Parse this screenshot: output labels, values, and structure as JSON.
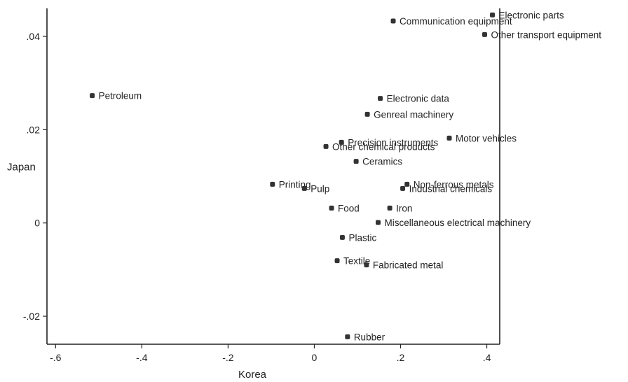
{
  "chart_data": {
    "type": "scatter",
    "xlabel": "Korea",
    "ylabel": "Japan",
    "xlim": [
      -0.62,
      0.43
    ],
    "ylim": [
      -0.026,
      0.046
    ],
    "xticks": [
      {
        "value": -0.6,
        "label": "-.6"
      },
      {
        "value": -0.4,
        "label": "-.4"
      },
      {
        "value": -0.2,
        "label": "-.2"
      },
      {
        "value": 0,
        "label": "0"
      },
      {
        "value": 0.2,
        "label": ".2"
      },
      {
        "value": 0.4,
        "label": ".4"
      }
    ],
    "yticks": [
      {
        "value": 0.04,
        "label": ".04"
      },
      {
        "value": 0.02,
        "label": ".02"
      },
      {
        "value": 0,
        "label": "0"
      },
      {
        "value": -0.02,
        "label": "-.02"
      }
    ],
    "points": [
      {
        "label": "Electronic parts",
        "x": 0.413,
        "y": 0.0446
      },
      {
        "label": "Communication equipment",
        "x": 0.183,
        "y": 0.0433
      },
      {
        "label": "Other transport equipment",
        "x": 0.395,
        "y": 0.0404
      },
      {
        "label": "Petroleum",
        "x": -0.515,
        "y": 0.0273
      },
      {
        "label": "Electronic data",
        "x": 0.153,
        "y": 0.0267
      },
      {
        "label": "Genreal machinery",
        "x": 0.123,
        "y": 0.0233
      },
      {
        "label": "Motor vehicles",
        "x": 0.313,
        "y": 0.0182
      },
      {
        "label": "Precision instruments",
        "x": 0.063,
        "y": 0.0173
      },
      {
        "label": "Other chemical products",
        "x": 0.027,
        "y": 0.0164
      },
      {
        "label": "Ceramics",
        "x": 0.097,
        "y": 0.0132
      },
      {
        "label": "Printing",
        "x": -0.097,
        "y": 0.0083
      },
      {
        "label": "Pulp",
        "x": -0.023,
        "y": 0.0074
      },
      {
        "label": "Non-ferrous metals",
        "x": 0.215,
        "y": 0.0083
      },
      {
        "label": "Industrial chemicals",
        "x": 0.205,
        "y": 0.0074
      },
      {
        "label": "Food",
        "x": 0.04,
        "y": 0.0032
      },
      {
        "label": "Iron",
        "x": 0.175,
        "y": 0.0032
      },
      {
        "label": "Miscellaneous electrical machinery",
        "x": 0.148,
        "y": 0.0001
      },
      {
        "label": "Plastic",
        "x": 0.065,
        "y": -0.0031
      },
      {
        "label": "Textile",
        "x": 0.053,
        "y": -0.0081
      },
      {
        "label": "Fabricated metal",
        "x": 0.121,
        "y": -0.009
      },
      {
        "label": "Rubber",
        "x": 0.077,
        "y": -0.0244
      }
    ]
  }
}
